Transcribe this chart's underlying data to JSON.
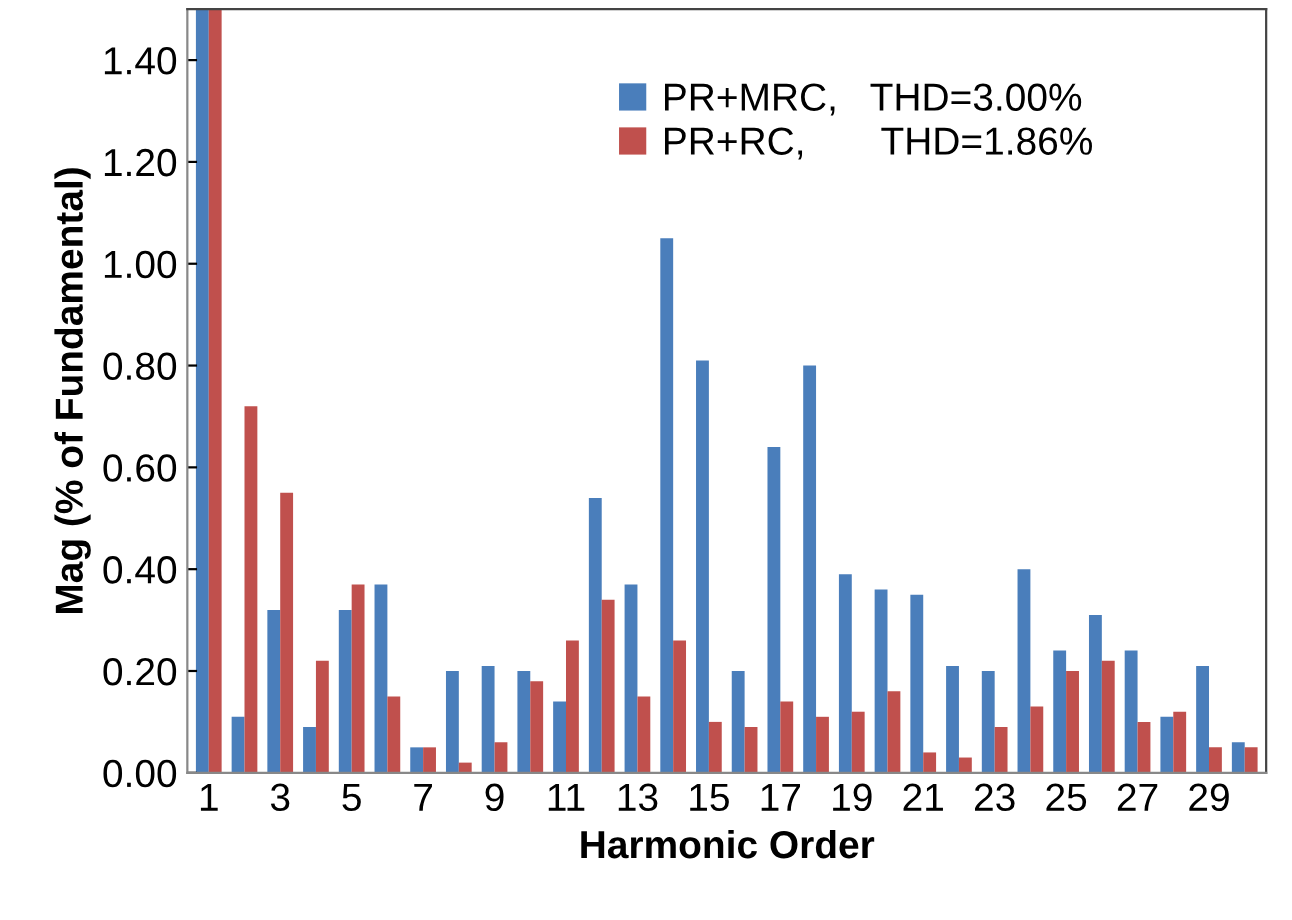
{
  "chart_data": {
    "type": "bar",
    "xlabel": "Harmonic Order",
    "ylabel": "Mag (% of Fundamental)",
    "categories": [
      "1",
      null,
      "3",
      null,
      "5",
      null,
      "7",
      null,
      "9",
      null,
      "11",
      null,
      "13",
      null,
      "15",
      null,
      "17",
      null,
      "19",
      null,
      "21",
      null,
      "23",
      null,
      "25",
      null,
      "27",
      null,
      "29",
      null
    ],
    "series": [
      {
        "name": "PR+MRC,   THD=3.00%",
        "color": "#4a7ebb",
        "values": [
          1.5,
          0.11,
          0.32,
          0.09,
          0.32,
          0.37,
          0.05,
          0.2,
          0.21,
          0.2,
          0.14,
          0.54,
          0.37,
          1.05,
          0.81,
          0.2,
          0.64,
          0.8,
          0.39,
          0.36,
          0.35,
          0.21,
          0.2,
          0.4,
          0.24,
          0.31,
          0.24,
          0.11,
          0.21,
          0.06
        ]
      },
      {
        "name": "PR+RC,       THD=1.86%",
        "color": "#c0504d",
        "values": [
          1.5,
          0.72,
          0.55,
          0.22,
          0.37,
          0.15,
          0.05,
          0.02,
          0.06,
          0.18,
          0.26,
          0.34,
          0.15,
          0.26,
          0.1,
          0.09,
          0.14,
          0.11,
          0.12,
          0.16,
          0.04,
          0.03,
          0.09,
          0.13,
          0.2,
          0.22,
          0.1,
          0.12,
          0.05,
          0.05
        ]
      }
    ],
    "ylim": [
      0,
      1.5
    ],
    "yticks": [
      {
        "value": 0,
        "label": "0.00"
      },
      {
        "value": 0.2,
        "label": "0.20"
      },
      {
        "value": 0.4,
        "label": "0.40"
      },
      {
        "value": 0.6,
        "label": "0.60"
      },
      {
        "value": 0.8,
        "label": "0.80"
      },
      {
        "value": 1.0,
        "label": "1.00"
      },
      {
        "value": 1.2,
        "label": "1.20"
      },
      {
        "value": 1.4,
        "label": "1.40"
      }
    ],
    "legend": "top"
  }
}
